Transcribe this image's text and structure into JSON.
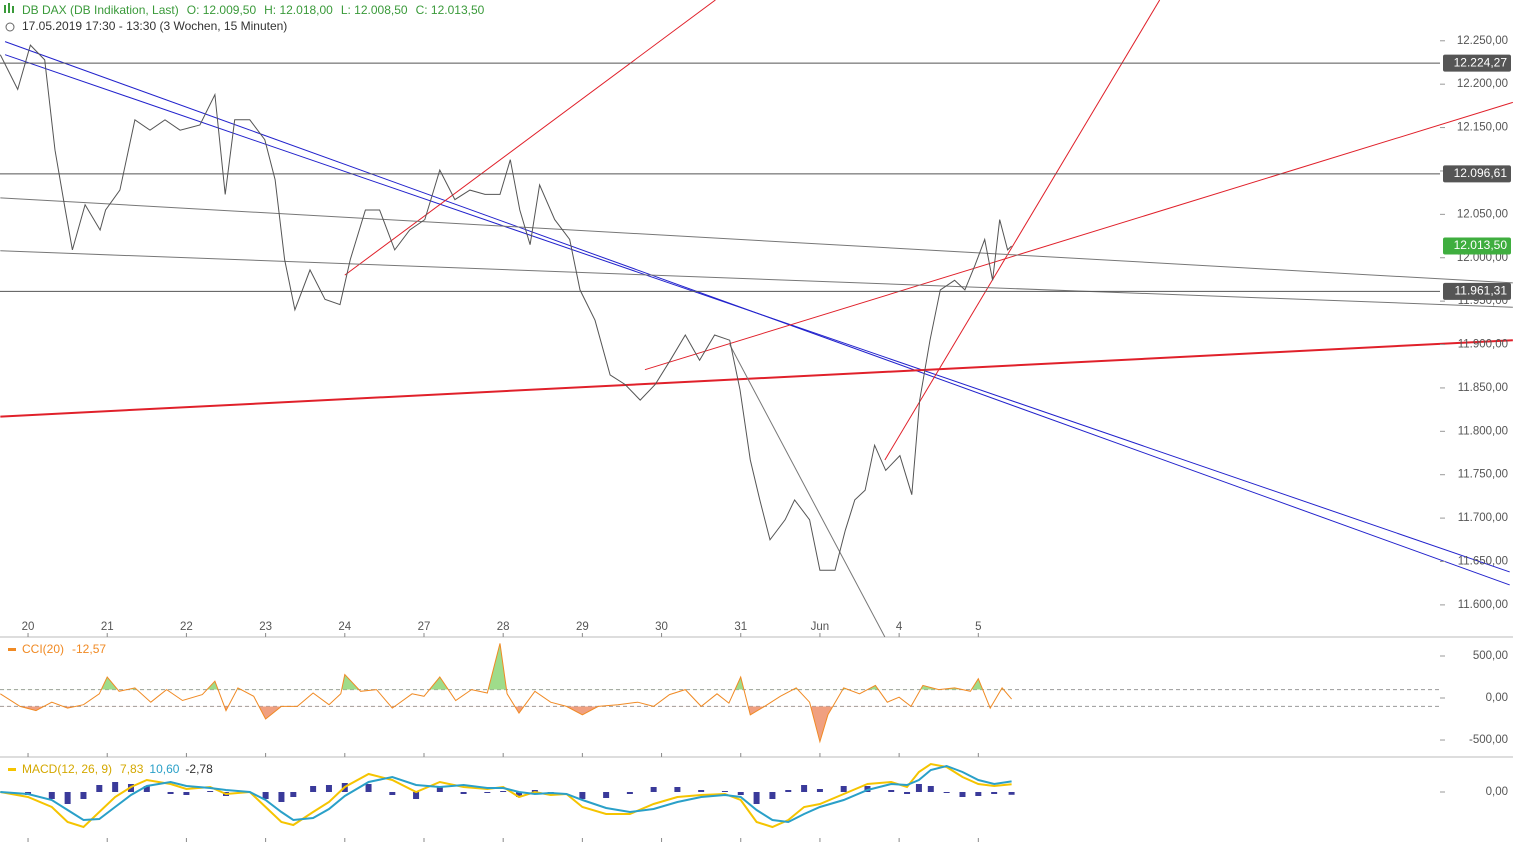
{
  "chart_data": [
    {
      "type": "line",
      "title": "DB DAX (DB Indikation, Last)",
      "quote": [
        "O: 12.009,50",
        "H: 12.018,00",
        "L: 12.008,50",
        "C: 12.013,50"
      ],
      "subtitle": "17.05.2019 17:30 - 13:30  (3 Wochen, 15 Minuten)",
      "xlim": [
        -0.354,
        17.83
      ],
      "xticks": [
        {
          "value": 0,
          "label": "20"
        },
        {
          "value": 1,
          "label": "21"
        },
        {
          "value": 2,
          "label": "22"
        },
        {
          "value": 3,
          "label": "23"
        },
        {
          "value": 4,
          "label": "24"
        },
        {
          "value": 5,
          "label": "27"
        },
        {
          "value": 6,
          "label": "28"
        },
        {
          "value": 7,
          "label": "29"
        },
        {
          "value": 8,
          "label": "30"
        },
        {
          "value": 9,
          "label": "31"
        },
        {
          "value": 10,
          "label": "Jun"
        },
        {
          "value": 11,
          "label": "4"
        },
        {
          "value": 12,
          "label": "5"
        }
      ],
      "ylim": [
        11563,
        12297
      ],
      "yticks": [
        {
          "value": 11600,
          "label": "11.600,00"
        },
        {
          "value": 11650,
          "label": "11.650,00"
        },
        {
          "value": 11700,
          "label": "11.700,00"
        },
        {
          "value": 11750,
          "label": "11.750,00"
        },
        {
          "value": 11800,
          "label": "11.800,00"
        },
        {
          "value": 11850,
          "label": "11.850,00"
        },
        {
          "value": 11900,
          "label": "11.900,00"
        },
        {
          "value": 11950,
          "label": "11.950,00"
        },
        {
          "value": 12000,
          "label": "12.000,00"
        },
        {
          "value": 12050,
          "label": "12.050,00"
        },
        {
          "value": 12100,
          "label": "12.100,00"
        },
        {
          "value": 12150,
          "label": "12.150,00"
        },
        {
          "value": 12200,
          "label": "12.200,00"
        },
        {
          "value": 12250,
          "label": "12.250,00"
        }
      ],
      "x": [
        -0.35,
        -0.13,
        0.03,
        0.21,
        0.34,
        0.47,
        0.56,
        0.72,
        0.91,
        0.98,
        1.16,
        1.35,
        1.54,
        1.73,
        1.92,
        2.17,
        2.36,
        2.49,
        2.61,
        2.8,
        2.99,
        3.12,
        3.24,
        3.37,
        3.56,
        3.75,
        3.94,
        4.07,
        4.26,
        4.44,
        4.63,
        4.82,
        5.01,
        5.2,
        5.39,
        5.58,
        5.77,
        5.96,
        6.09,
        6.21,
        6.34,
        6.46,
        6.65,
        6.84,
        6.97,
        7.16,
        7.35,
        7.54,
        7.73,
        7.92,
        8.11,
        8.3,
        8.48,
        8.67,
        8.86,
        8.99,
        9.12,
        9.24,
        9.37,
        9.56,
        9.68,
        9.87,
        10.0,
        10.19,
        10.32,
        10.44,
        10.57,
        10.69,
        10.83,
        11.01,
        11.16,
        11.26,
        11.39,
        11.52,
        11.7,
        11.83,
        11.96,
        12.08,
        12.18,
        12.27,
        12.37,
        12.42
      ],
      "series": [
        {
          "color": "#555555",
          "values": [
            12234,
            12194,
            12245,
            12228,
            12124,
            12055,
            12009,
            12061,
            12032,
            12055,
            12078,
            12159,
            12147,
            12159,
            12147,
            12153,
            12188,
            12073,
            12159,
            12159,
            12136,
            12090,
            11998,
            11940,
            11986,
            11952,
            11946,
            11998,
            12055,
            12055,
            12009,
            12032,
            12044,
            12101,
            12067,
            12078,
            12073,
            12073,
            12113,
            12055,
            12015,
            12084,
            12044,
            12021,
            11963,
            11928,
            11865,
            11854,
            11836,
            11854,
            11882,
            11911,
            11882,
            11911,
            11905,
            11848,
            11767,
            11721,
            11675,
            11698,
            11721,
            11698,
            11640,
            11640,
            11686,
            11721,
            11732,
            11784,
            11755,
            11772,
            11727,
            11836,
            11905,
            11963,
            11974,
            11963,
            11992,
            12021,
            11974,
            12044,
            12009,
            12013.5
          ]
        }
      ],
      "levels": [
        {
          "value": 12224.27,
          "label": "12.224,27"
        },
        {
          "value": 12096.61,
          "label": "12.096,61"
        },
        {
          "value": 11961.31,
          "label": "11.961,31"
        }
      ],
      "last": {
        "value": 12013.5,
        "label": "12.013,50",
        "color": "#3fae3f"
      },
      "trendlines": [
        {
          "color": "#2222cc",
          "width": 1,
          "x": [
            -0.29,
            18.71
          ],
          "y": [
            12249,
            11623
          ]
        },
        {
          "color": "#2222cc",
          "width": 1,
          "x": [
            -0.29,
            18.71
          ],
          "y": [
            12234,
            11638
          ]
        },
        {
          "color": "#e0202a",
          "width": 2,
          "x": [
            -0.35,
            18.75
          ],
          "y": [
            11817,
            11905
          ]
        },
        {
          "color": "#e0202a",
          "width": 1,
          "x": [
            4.0,
            8.68
          ],
          "y": [
            11980,
            12297
          ]
        },
        {
          "color": "#e0202a",
          "width": 1,
          "x": [
            10.82,
            14.29
          ],
          "y": [
            11767,
            12297
          ]
        },
        {
          "color": "#e0202a",
          "width": 1,
          "x": [
            7.79,
            18.75
          ],
          "y": [
            11871,
            12179
          ]
        },
        {
          "color": "#777777",
          "width": 1,
          "x": [
            -0.35,
            18.75
          ],
          "y": [
            12069,
            11971
          ]
        },
        {
          "color": "#777777",
          "width": 1,
          "x": [
            -0.35,
            18.75
          ],
          "y": [
            12008,
            11943
          ]
        },
        {
          "color": "#777777",
          "width": 1,
          "x": [
            8.86,
            10.82
          ],
          "y": [
            11900,
            11563
          ]
        }
      ]
    },
    {
      "type": "line",
      "xlim": [
        -0.354,
        17.83
      ],
      "ylim": [
        -702,
        726
      ],
      "yticks": [
        {
          "value": 500,
          "label": "500,00"
        },
        {
          "value": 0,
          "label": "0,00"
        },
        {
          "value": -500,
          "label": "-500,00"
        }
      ],
      "levels": [
        100,
        -100
      ],
      "x": [
        -0.35,
        -0.1,
        0.1,
        0.3,
        0.5,
        0.7,
        0.9,
        1.0,
        1.15,
        1.35,
        1.55,
        1.75,
        1.95,
        2.2,
        2.36,
        2.5,
        2.65,
        2.85,
        3.0,
        3.2,
        3.4,
        3.6,
        3.8,
        3.95,
        4.0,
        4.2,
        4.4,
        4.6,
        4.85,
        5.0,
        5.2,
        5.4,
        5.6,
        5.8,
        5.96,
        6.05,
        6.2,
        6.4,
        6.6,
        6.8,
        7.0,
        7.2,
        7.45,
        7.7,
        7.9,
        8.1,
        8.3,
        8.5,
        8.7,
        8.85,
        9.0,
        9.12,
        9.3,
        9.5,
        9.7,
        9.87,
        10.0,
        10.1,
        10.3,
        10.5,
        10.7,
        10.85,
        11.0,
        11.15,
        11.3,
        11.5,
        11.7,
        11.9,
        12.0,
        12.15,
        12.3,
        12.42
      ],
      "series": [
        {
          "name": "CCI(20)",
          "color": "#f08a24",
          "values": [
            50,
            -100,
            -150,
            -50,
            -120,
            -80,
            50,
            250,
            80,
            120,
            -50,
            100,
            -30,
            40,
            200,
            -150,
            120,
            20,
            -250,
            -100,
            -100,
            60,
            -80,
            50,
            280,
            80,
            100,
            -120,
            50,
            20,
            250,
            -30,
            100,
            60,
            650,
            50,
            -180,
            80,
            -50,
            -100,
            -200,
            -100,
            -80,
            -50,
            -100,
            40,
            100,
            -100,
            50,
            -60,
            250,
            -200,
            -100,
            20,
            120,
            -50,
            -520,
            -200,
            120,
            50,
            150,
            -50,
            10,
            -100,
            150,
            100,
            120,
            80,
            230,
            -120,
            120,
            -12.57
          ]
        }
      ],
      "last_labels": [
        {
          "value": -12.57,
          "label": "-12,57",
          "color": "#f08a24"
        }
      ]
    },
    {
      "type": "line",
      "xlim": [
        -0.354,
        17.83
      ],
      "ylim": [
        -50,
        35
      ],
      "yticks": [
        {
          "value": 0,
          "label": "0,00"
        }
      ],
      "x": [
        -0.35,
        0.0,
        0.3,
        0.5,
        0.7,
        0.9,
        1.1,
        1.3,
        1.5,
        1.8,
        2.0,
        2.3,
        2.5,
        2.8,
        3.0,
        3.2,
        3.35,
        3.6,
        3.8,
        4.0,
        4.3,
        4.6,
        4.9,
        5.2,
        5.5,
        5.8,
        6.0,
        6.2,
        6.4,
        6.6,
        6.8,
        7.0,
        7.3,
        7.6,
        7.9,
        8.2,
        8.5,
        8.8,
        9.0,
        9.2,
        9.4,
        9.6,
        9.8,
        10.0,
        10.3,
        10.6,
        10.9,
        11.1,
        11.25,
        11.4,
        11.6,
        11.8,
        12.0,
        12.2,
        12.42
      ],
      "series": [
        {
          "kind": "bar",
          "color": "#3a3a9a",
          "values": [
            0,
            -3,
            -7,
            -12,
            -7,
            7,
            10,
            8,
            6,
            -2,
            -3,
            1,
            -4,
            0,
            -7,
            -10,
            -5,
            6,
            7,
            9,
            8,
            -3,
            -7,
            5,
            -2,
            -1,
            1,
            -5,
            2,
            -2,
            0,
            -7,
            -6,
            -2,
            5,
            5,
            2,
            1,
            -3,
            -12,
            -7,
            2,
            7,
            3,
            6,
            6,
            2,
            -2,
            8,
            6,
            -1,
            -5,
            -4,
            -2,
            -2.78
          ]
        },
        {
          "name": "MACD(12, 26, 9)",
          "color": "#f5c400",
          "values": [
            0,
            -5,
            -15,
            -30,
            -35,
            -20,
            -5,
            5,
            12,
            8,
            3,
            5,
            -2,
            0,
            -15,
            -30,
            -33,
            -20,
            -10,
            5,
            18,
            12,
            0,
            10,
            5,
            3,
            5,
            -5,
            0,
            -3,
            -2,
            -15,
            -22,
            -22,
            -12,
            -5,
            -3,
            -2,
            -8,
            -30,
            -35,
            -28,
            -15,
            -12,
            -2,
            8,
            10,
            5,
            20,
            28,
            25,
            15,
            8,
            6,
            7.83
          ]
        },
        {
          "color": "#2aa0c8",
          "values": [
            0,
            -2,
            -8,
            -18,
            -28,
            -27,
            -15,
            -3,
            6,
            10,
            6,
            4,
            2,
            0,
            -8,
            -20,
            -28,
            -26,
            -17,
            -4,
            10,
            15,
            7,
            5,
            7,
            4,
            4,
            0,
            -2,
            -1,
            -2,
            -8,
            -16,
            -20,
            -17,
            -10,
            -5,
            -3,
            -5,
            -18,
            -28,
            -30,
            -22,
            -15,
            -8,
            2,
            8,
            7,
            12,
            22,
            26,
            20,
            12,
            8,
            10.6
          ]
        }
      ],
      "last_labels": [
        {
          "value": 7.83,
          "label": "7,83",
          "color": "#d4a800"
        },
        {
          "value": 10.6,
          "label": "10,60",
          "color": "#2aa0c8"
        },
        {
          "value": -2.78,
          "label": "-2,78",
          "color": "#333333"
        }
      ]
    }
  ]
}
